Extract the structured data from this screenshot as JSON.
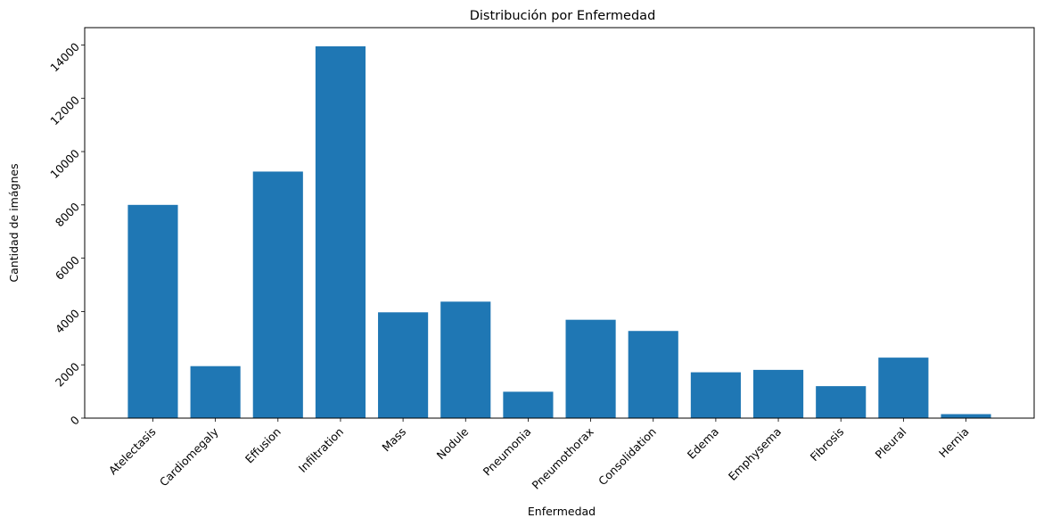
{
  "chart_data": {
    "type": "bar",
    "title": "Distribución por Enfermedad",
    "xlabel": "Enfermedad",
    "ylabel": "Cantidad de imágnes",
    "categories": [
      "Atelectasis",
      "Cardiomegaly",
      "Effusion",
      "Infiltration",
      "Mass",
      "Nodule",
      "Pneumonia",
      "Pneumothorax",
      "Consolidation",
      "Edema",
      "Emphysema",
      "Fibrosis",
      "Pleural",
      "Hernia"
    ],
    "values": [
      8000,
      1950,
      9250,
      13950,
      3970,
      4370,
      990,
      3690,
      3270,
      1720,
      1810,
      1200,
      2270,
      150
    ],
    "ylim": [
      0,
      14650
    ],
    "yticks": [
      0,
      2000,
      4000,
      6000,
      8000,
      10000,
      12000,
      14000
    ],
    "bar_color": "#1f77b4",
    "grid": false,
    "legend": "none"
  }
}
